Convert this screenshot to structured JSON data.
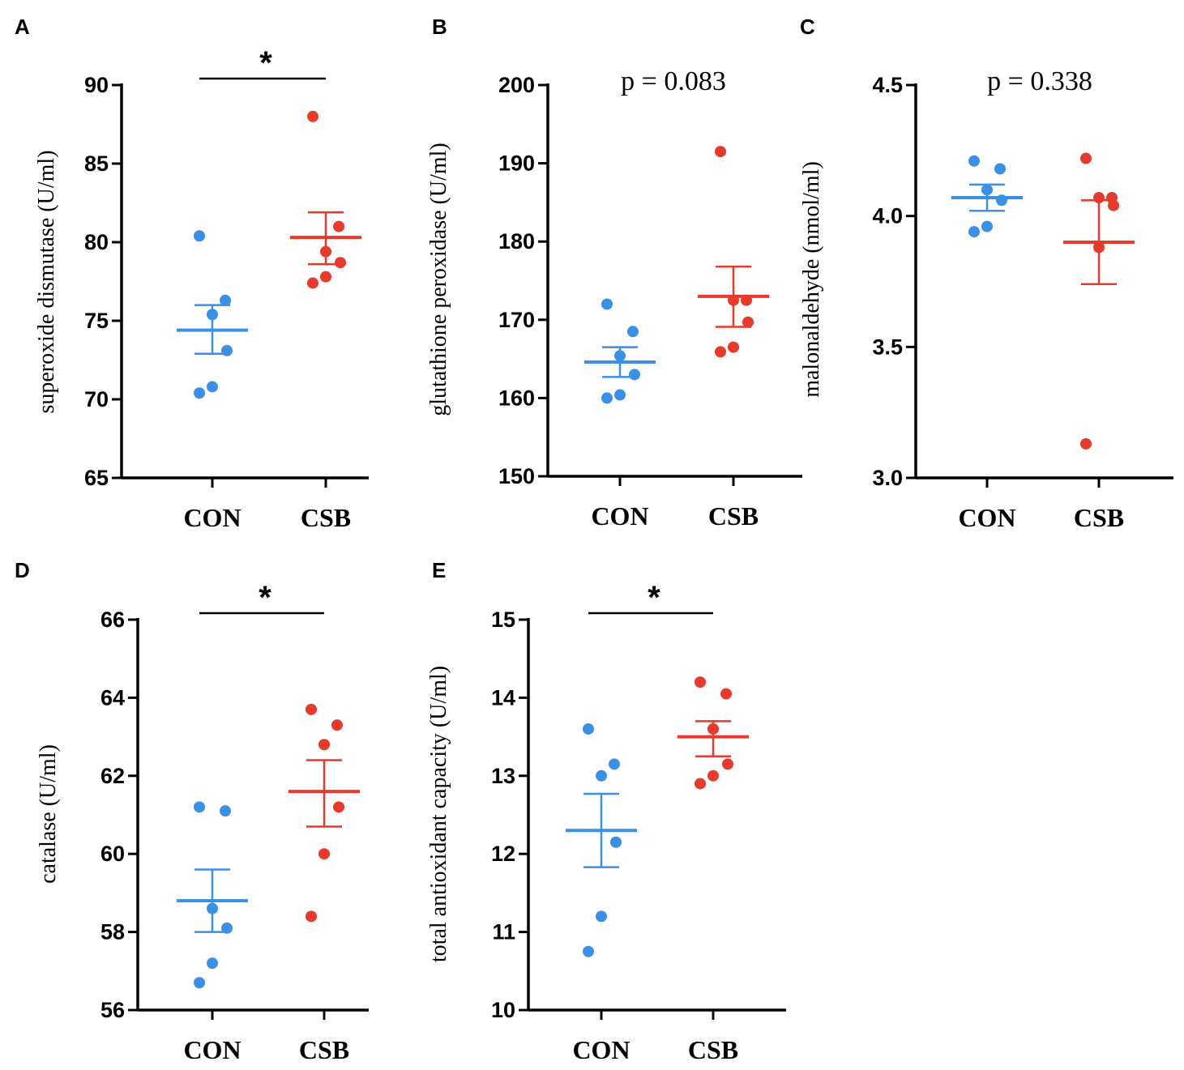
{
  "chart_data": [
    {
      "type": "scatter",
      "panel": "A",
      "ylabel": "superoxide dismutase (U/ml)",
      "ylim": [
        65,
        90
      ],
      "yticks": [
        65,
        70,
        75,
        80,
        85,
        90
      ],
      "categories": [
        "CON",
        "CSB"
      ],
      "significance": "*",
      "series": [
        {
          "name": "CON",
          "color": "#3a8fe6",
          "points": [
            80.4,
            76.3,
            75.4,
            73.1,
            70.8,
            70.4
          ],
          "mean": 74.4,
          "sem_upper": 76.0,
          "sem_lower": 72.9
        },
        {
          "name": "CSB",
          "color": "#e8392a",
          "points": [
            88.0,
            81.0,
            79.4,
            78.7,
            77.8,
            77.4
          ],
          "mean": 80.3,
          "sem_upper": 81.9,
          "sem_lower": 78.6
        }
      ]
    },
    {
      "type": "scatter",
      "panel": "B",
      "ylabel": "glutathione peroxidase (U/ml)",
      "ylim": [
        150,
        200
      ],
      "yticks": [
        150,
        160,
        170,
        180,
        190,
        200
      ],
      "categories": [
        "CON",
        "CSB"
      ],
      "p_label": "p = 0.083",
      "series": [
        {
          "name": "CON",
          "color": "#3a8fe6",
          "points": [
            172.0,
            168.5,
            165.4,
            163.0,
            160.4,
            160.0
          ],
          "mean": 164.6,
          "sem_upper": 166.5,
          "sem_lower": 162.7
        },
        {
          "name": "CSB",
          "color": "#e8392a",
          "points": [
            191.5,
            172.5,
            172.5,
            169.7,
            166.5,
            165.9
          ],
          "mean": 173.0,
          "sem_upper": 176.8,
          "sem_lower": 169.1
        }
      ]
    },
    {
      "type": "scatter",
      "panel": "C",
      "ylabel": "malonaldehyde (nmol/ml)",
      "ylim": [
        3.0,
        4.5
      ],
      "yticks": [
        3.0,
        3.5,
        4.0,
        4.5
      ],
      "categories": [
        "CON",
        "CSB"
      ],
      "p_label": "p = 0.338",
      "series": [
        {
          "name": "CON",
          "color": "#3a8fe6",
          "points": [
            4.21,
            4.18,
            4.1,
            4.06,
            3.96,
            3.94
          ],
          "mean": 4.07,
          "sem_upper": 4.12,
          "sem_lower": 4.02
        },
        {
          "name": "CSB",
          "color": "#e8392a",
          "points": [
            4.22,
            4.07,
            4.07,
            4.04,
            3.88,
            3.13
          ],
          "mean": 3.9,
          "sem_upper": 4.06,
          "sem_lower": 3.74
        }
      ]
    },
    {
      "type": "scatter",
      "panel": "D",
      "ylabel": "catalase (U/ml)",
      "ylim": [
        56,
        66
      ],
      "yticks": [
        56,
        58,
        60,
        62,
        64,
        66
      ],
      "categories": [
        "CON",
        "CSB"
      ],
      "significance": "*",
      "series": [
        {
          "name": "CON",
          "color": "#3a8fe6",
          "points": [
            61.2,
            61.1,
            58.6,
            58.1,
            57.2,
            56.7
          ],
          "mean": 58.8,
          "sem_upper": 59.6,
          "sem_lower": 58.0
        },
        {
          "name": "CSB",
          "color": "#e8392a",
          "points": [
            63.7,
            63.3,
            62.8,
            61.2,
            60.0,
            58.4
          ],
          "mean": 61.6,
          "sem_upper": 62.4,
          "sem_lower": 60.7
        }
      ]
    },
    {
      "type": "scatter",
      "panel": "E",
      "ylabel": "total antioxidant capacity (U/ml)",
      "ylim": [
        10,
        15
      ],
      "yticks": [
        10,
        11,
        12,
        13,
        14,
        15
      ],
      "categories": [
        "CON",
        "CSB"
      ],
      "significance": "*",
      "series": [
        {
          "name": "CON",
          "color": "#3a8fe6",
          "points": [
            13.6,
            13.15,
            13.0,
            12.15,
            11.2,
            10.75
          ],
          "mean": 12.3,
          "sem_upper": 12.77,
          "sem_lower": 11.83
        },
        {
          "name": "CSB",
          "color": "#e8392a",
          "points": [
            14.2,
            14.05,
            13.6,
            13.15,
            13.0,
            12.9
          ],
          "mean": 13.5,
          "sem_upper": 13.7,
          "sem_lower": 13.25
        }
      ]
    }
  ]
}
